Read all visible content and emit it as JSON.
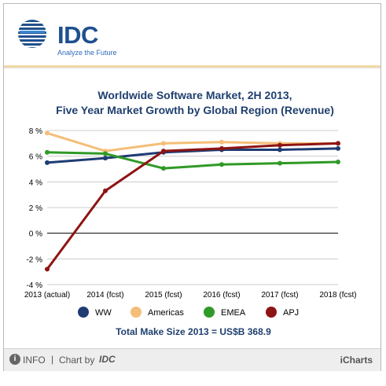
{
  "header": {
    "logo_text": "IDC",
    "tagline": "Analyze the Future"
  },
  "footer": {
    "info_icon": "info-icon",
    "info_label": "INFO",
    "separator": "|",
    "chart_by_label": "Chart by",
    "chart_by_brand": "IDC",
    "brand_label": "iCharts"
  },
  "colors": {
    "title": "#1f3f6f",
    "header_rule": "#f0d9a6",
    "grid": "#cccccc",
    "zero_line": "#000000"
  },
  "chart_data": {
    "type": "line",
    "title": "Worldwide Software Market, 2H 2013,",
    "subtitle": "Five Year Market Growth by Global Region (Revenue)",
    "x": [
      "2013 (actual)",
      "2014 (fcst)",
      "2015 (fcst)",
      "2016 (fcst)",
      "2017 (fcst)",
      "2018 (fcst)"
    ],
    "ylim": [
      -4,
      8
    ],
    "yticks": [
      -4,
      -2,
      0,
      2,
      4,
      6,
      8
    ],
    "ytick_labels": [
      "-4 %",
      "-2 %",
      "0 %",
      "2 %",
      "4 %",
      "6 %",
      "8 %"
    ],
    "grid": true,
    "legend_position": "bottom",
    "series": [
      {
        "name": "WW",
        "color": "#1f3c73",
        "values": [
          5.5,
          5.85,
          6.3,
          6.5,
          6.5,
          6.6
        ]
      },
      {
        "name": "Americas",
        "color": "#f5be78",
        "values": [
          7.8,
          6.4,
          7.0,
          7.1,
          7.0,
          7.0
        ]
      },
      {
        "name": "EMEA",
        "color": "#2f9a26",
        "values": [
          6.3,
          6.2,
          5.05,
          5.35,
          5.45,
          5.55
        ]
      },
      {
        "name": "APJ",
        "color": "#8e1414",
        "values": [
          -2.8,
          3.3,
          6.4,
          6.6,
          6.85,
          7.0
        ]
      }
    ],
    "annotation": "Total Make Size 2013 = US$B 368.9"
  }
}
